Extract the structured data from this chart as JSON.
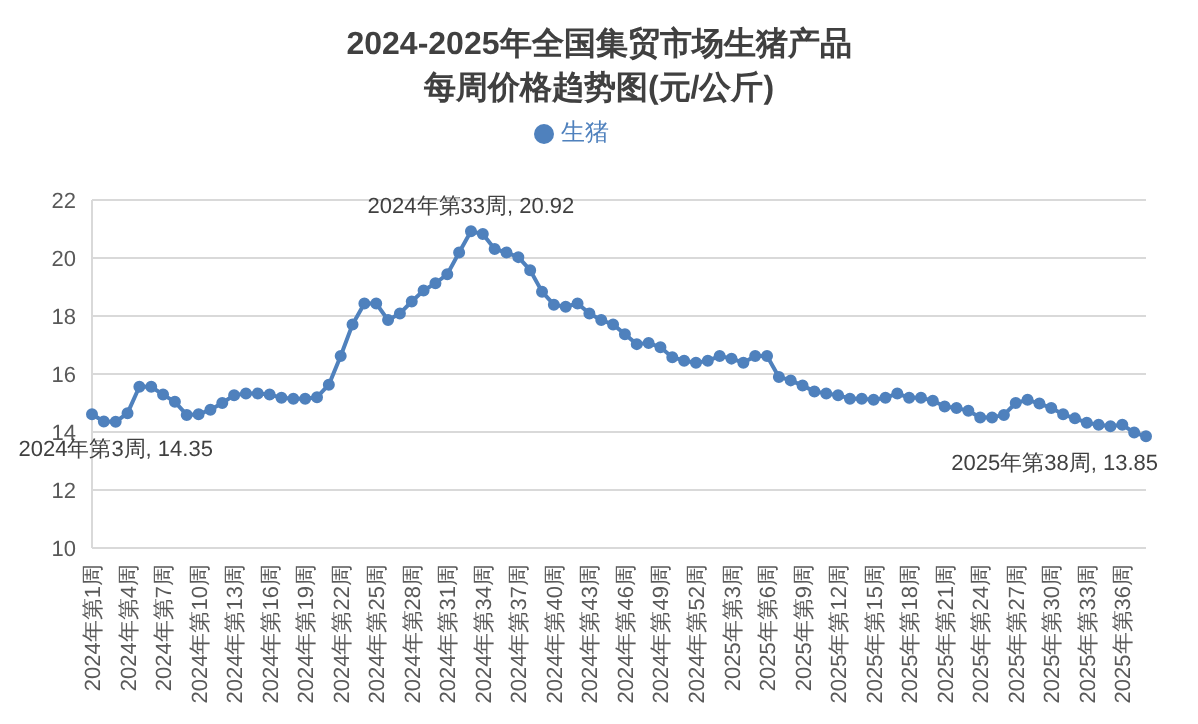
{
  "chart_data": {
    "type": "line",
    "title": "2024-2025年全国集贸市场生猪产品",
    "subtitle": "每周价格趋势图(元/公斤)",
    "categories": [
      "2024年第1周",
      null,
      null,
      "2024年第4周",
      null,
      null,
      "2024年第7周",
      null,
      null,
      "2024年第10周",
      null,
      null,
      "2024年第13周",
      null,
      null,
      "2024年第16周",
      null,
      null,
      "2024年第19周",
      null,
      null,
      "2024年第22周",
      null,
      null,
      "2024年第25周",
      null,
      null,
      "2024年第28周",
      null,
      null,
      "2024年第31周",
      null,
      null,
      "2024年第34周",
      null,
      null,
      "2024年第37周",
      null,
      null,
      "2024年第40周",
      null,
      null,
      "2024年第43周",
      null,
      null,
      "2024年第46周",
      null,
      null,
      "2024年第49周",
      null,
      null,
      "2024年第52周",
      null,
      null,
      "2025年第3周",
      null,
      null,
      "2025年第6周",
      null,
      null,
      "2025年第9周",
      null,
      null,
      "2025年第12周",
      null,
      null,
      "2025年第15周",
      null,
      null,
      "2025年第18周",
      null,
      null,
      "2025年第21周",
      null,
      null,
      "2025年第24周",
      null,
      null,
      "2025年第27周",
      null,
      null,
      "2025年第30周",
      null,
      null,
      "2025年第33周",
      null,
      null,
      "2025年第36周",
      null,
      null
    ],
    "series": [
      {
        "name": "生猪",
        "color": "#4f81bd",
        "values": [
          14.61,
          14.36,
          14.35,
          14.65,
          15.56,
          15.56,
          15.29,
          15.04,
          14.59,
          14.61,
          14.77,
          15.0,
          15.27,
          15.33,
          15.33,
          15.29,
          15.18,
          15.15,
          15.15,
          15.2,
          15.63,
          16.62,
          17.71,
          18.43,
          18.43,
          17.86,
          18.09,
          18.5,
          18.88,
          19.13,
          19.44,
          20.19,
          20.92,
          20.83,
          20.31,
          20.19,
          20.03,
          19.58,
          18.84,
          18.39,
          18.32,
          18.43,
          18.09,
          17.86,
          17.71,
          17.37,
          17.03,
          17.07,
          16.92,
          16.58,
          16.46,
          16.39,
          16.46,
          16.62,
          16.53,
          16.39,
          16.62,
          16.62,
          15.9,
          15.78,
          15.6,
          15.4,
          15.33,
          15.27,
          15.15,
          15.15,
          15.11,
          15.18,
          15.33,
          15.18,
          15.18,
          15.08,
          14.88,
          14.83,
          14.73,
          14.5,
          14.5,
          14.59,
          15.0,
          15.11,
          14.98,
          14.83,
          14.61,
          14.47,
          14.32,
          14.25,
          14.2,
          14.25,
          13.98,
          13.85
        ],
        "value_labels": [
          null,
          null,
          "2024年第3周, 14.35",
          null,
          null,
          null,
          null,
          null,
          null,
          null,
          null,
          null,
          null,
          null,
          null,
          null,
          null,
          null,
          null,
          null,
          null,
          null,
          null,
          null,
          null,
          null,
          null,
          null,
          null,
          null,
          null,
          null,
          "2024年第33周, 20.92",
          null,
          null,
          null,
          null,
          null,
          null,
          null,
          null,
          null,
          null,
          null,
          null,
          null,
          null,
          null,
          null,
          null,
          null,
          null,
          null,
          null,
          null,
          null,
          null,
          null,
          null,
          null,
          null,
          null,
          null,
          null,
          null,
          null,
          null,
          null,
          null,
          null,
          null,
          null,
          null,
          null,
          null,
          null,
          null,
          null,
          null,
          null,
          null,
          null,
          null,
          null,
          null,
          null,
          null,
          null,
          null,
          "2025年第38周, 13.85"
        ]
      }
    ],
    "ylim": [
      10,
      22
    ],
    "yticks": [
      10,
      12,
      14,
      16,
      18,
      20,
      22
    ],
    "grid": "y",
    "legend": "top",
    "marker": "circle"
  }
}
